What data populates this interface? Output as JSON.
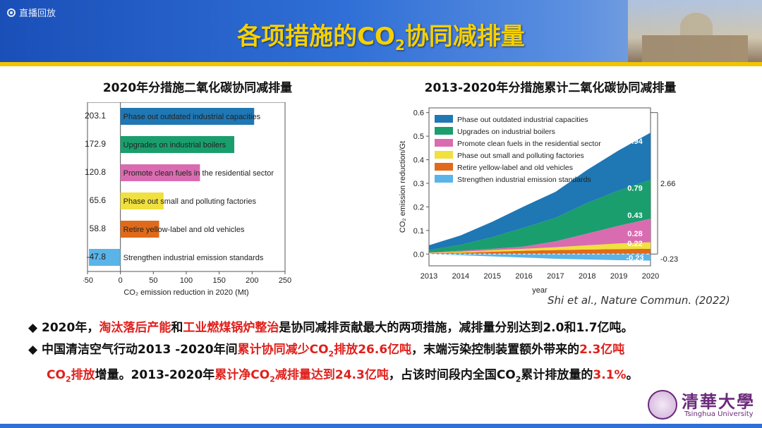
{
  "live": {
    "label": "直播回放"
  },
  "title": {
    "pre": "各项措施的CO",
    "sub": "2",
    "post": "协同减排量"
  },
  "chart_data": [
    {
      "type": "bar",
      "orientation": "horizontal",
      "title": "2020年分措施二氧化碳协同减排量",
      "xlabel": "CO₂ emission reduction in 2020 (Mt)",
      "xlim": [
        -50,
        250
      ],
      "xticks": [
        "-50",
        "0",
        "50",
        "100",
        "150",
        "200",
        "250"
      ],
      "categories": [
        "Phase out outdated industrial capacities",
        "Upgrades on industrial boilers",
        "Promote clean fuels in the residential sector",
        "Phase out small and polluting factories",
        "Retire yellow-label and old vehicles",
        "Strengthen industrial emission standards"
      ],
      "values": [
        203.1,
        172.9,
        120.8,
        65.6,
        58.8,
        -47.8
      ],
      "value_labels": [
        "203.1",
        "172.9",
        "120.8",
        "65.6",
        "58.8",
        "-47.8"
      ],
      "colors": [
        "#1f77b4",
        "#1a9e6e",
        "#d96cb0",
        "#f0e040",
        "#e06a1a",
        "#5ab4e8"
      ]
    },
    {
      "type": "area",
      "title": "2013-2020年分措施累计二氧化碳协同减排量",
      "xlabel": "year",
      "ylabel": "CO₂ emission reduction/Gt",
      "x": [
        "2013",
        "2014",
        "2015",
        "2016",
        "2017",
        "2018",
        "2019",
        "2020"
      ],
      "ylim": [
        -0.05,
        0.62
      ],
      "yticks": [
        "0.0",
        "0.1",
        "0.2",
        "0.3",
        "0.4",
        "0.5",
        "0.6"
      ],
      "series": [
        {
          "name": "Strengthen industrial emission standards",
          "values": [
            0,
            -0.005,
            -0.01,
            -0.015,
            -0.02,
            -0.023,
            -0.026,
            -0.028
          ]
        },
        {
          "name": "Retire yellow-label and old vehicles",
          "values": [
            0.003,
            0.006,
            0.01,
            0.014,
            0.017,
            0.019,
            0.021,
            0.022
          ]
        },
        {
          "name": "Phase out small and polluting factories",
          "values": [
            0.002,
            0.004,
            0.006,
            0.008,
            0.012,
            0.018,
            0.024,
            0.028
          ]
        },
        {
          "name": "Promote clean fuels in the residential sector",
          "values": [
            0.002,
            0.004,
            0.006,
            0.01,
            0.025,
            0.05,
            0.075,
            0.1
          ]
        },
        {
          "name": "Upgrades on industrial boilers",
          "values": [
            0.01,
            0.025,
            0.05,
            0.08,
            0.1,
            0.13,
            0.15,
            0.165
          ]
        },
        {
          "name": "Phase out outdated industrial capacities",
          "values": [
            0.02,
            0.04,
            0.065,
            0.09,
            0.11,
            0.14,
            0.17,
            0.2
          ]
        }
      ],
      "colors": [
        "#5ab4e8",
        "#e06a1a",
        "#f0e040",
        "#d96cb0",
        "#1a9e6e",
        "#1f77b4"
      ],
      "value_labels": [
        "0.94",
        "0.79",
        "0.43",
        "0.28",
        "0.22",
        "-0.23"
      ],
      "bracket_labels": [
        "2.66",
        "-0.23"
      ],
      "legend_placement": "top-left"
    }
  ],
  "citation": "Shi et al., Nature Commun. (2022)",
  "bullets": {
    "b1": {
      "diamond": "◆",
      "p1": "2020年，",
      "r1": "淘汰落后产能",
      "p2": "和",
      "r2": "工业燃煤锅炉整治",
      "p3": "是协同减排贡献最大的两项措施，减排量分别达到2.0和1.7亿吨。"
    },
    "b2": {
      "diamond": "◆",
      "p1": "中国清洁空气行动2013  -2020年间",
      "r1": "累计协同减少CO",
      "r1sub": "2",
      "r1b": "排放26.6亿吨",
      "p2": "，末端污染控制装置额外带来的",
      "r2": "2.3亿吨",
      "r3": "CO",
      "r3sub": "2",
      "r3b": "排放",
      "p3": "增量。2013-2020年",
      "r4": "累计净CO",
      "r4sub": "2",
      "r4b": "减排量达到24.3亿吨",
      "p4": "，占该时间段内全国CO",
      "p4sub": "2",
      "p4b": "累计排放量的",
      "r5": "3.1%",
      "p5": "。"
    }
  },
  "logo": {
    "cn": "清華大學",
    "en": "Tsinghua University"
  }
}
